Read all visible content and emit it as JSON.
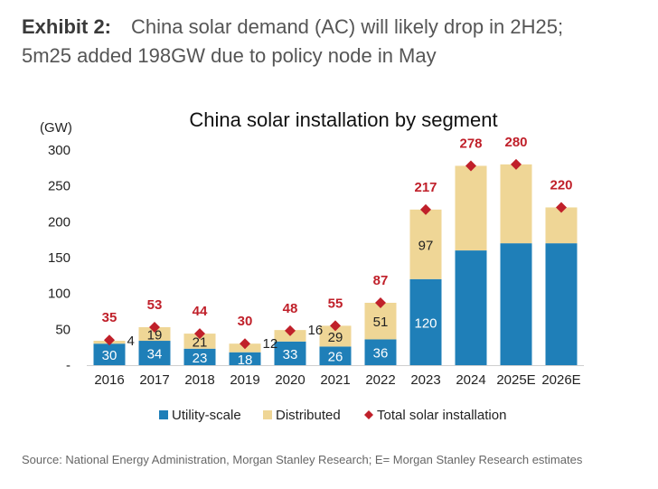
{
  "header": {
    "exhibit_label": "Exhibit 2:",
    "headline_line1": "China solar demand (AC) will likely drop in 2H25;",
    "headline_line2": "5m25 added 198GW due to policy node in May"
  },
  "source_note": "Source: National Energy Administration, Morgan Stanley Research; E= Morgan Stanley Research estimates",
  "colors": {
    "utility": "#1f7fb8",
    "distributed": "#efd696",
    "total": "#c0202a",
    "axis_text": "#222222",
    "segment_label_dark": "#222222",
    "segment_label_light": "#ffffff"
  },
  "chart_data": {
    "type": "bar",
    "stacked": true,
    "title": "China solar installation by segment",
    "ylabel": "(GW)",
    "xlabel": "",
    "ylim": [
      0,
      300
    ],
    "yticks": [
      0,
      50,
      100,
      150,
      200,
      250,
      300
    ],
    "ytick_labels": [
      "-",
      "50",
      "100",
      "150",
      "200",
      "250",
      "300"
    ],
    "grid": false,
    "legend_position": "bottom",
    "categories": [
      "2016",
      "2017",
      "2018",
      "2019",
      "2020",
      "2021",
      "2022",
      "2023",
      "2024",
      "2025E",
      "2026E"
    ],
    "series": [
      {
        "name": "Utility-scale",
        "kind": "bar",
        "values": [
          30,
          34,
          23,
          18,
          33,
          26,
          36,
          120,
          160,
          170,
          170
        ],
        "labels": [
          "30",
          "34",
          "23",
          "18",
          "33",
          "26",
          "36",
          "120",
          "",
          "",
          ""
        ]
      },
      {
        "name": "Distributed",
        "kind": "bar",
        "values": [
          4,
          19,
          21,
          12,
          16,
          29,
          51,
          97,
          118,
          110,
          50
        ],
        "labels": [
          "4",
          "19",
          "21",
          "12",
          "16",
          "29",
          "51",
          "97",
          "",
          "",
          ""
        ]
      },
      {
        "name": "Total solar installation",
        "kind": "marker",
        "values": [
          35,
          53,
          44,
          30,
          48,
          55,
          87,
          217,
          278,
          280,
          220
        ],
        "labels": [
          "35",
          "53",
          "44",
          "30",
          "48",
          "55",
          "87",
          "217",
          "278",
          "280",
          "220"
        ]
      }
    ]
  }
}
